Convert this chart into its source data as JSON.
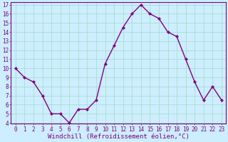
{
  "x": [
    0,
    1,
    2,
    3,
    4,
    5,
    6,
    7,
    8,
    9,
    10,
    11,
    12,
    13,
    14,
    15,
    16,
    17,
    18,
    19,
    20,
    21,
    22,
    23
  ],
  "y": [
    10,
    9,
    8.5,
    7,
    5,
    5,
    4,
    5.5,
    5.5,
    6.5,
    10.5,
    12.5,
    14.5,
    16,
    17,
    16,
    15.5,
    14,
    13.5,
    11,
    8.5,
    6.5,
    8,
    6.5
  ],
  "line_color": "#800080",
  "marker": "D",
  "marker_size": 2.0,
  "line_width": 1.0,
  "bg_color": "#cceeff",
  "grid_color": "#aaddcc",
  "xlabel": "Windchill (Refroidissement éolien,°C)",
  "xlabel_color": "#800080",
  "tick_color": "#800080",
  "spine_color": "#800080",
  "ylim": [
    4,
    17
  ],
  "xlim": [
    -0.5,
    23.5
  ],
  "yticks": [
    4,
    5,
    6,
    7,
    8,
    9,
    10,
    11,
    12,
    13,
    14,
    15,
    16,
    17
  ],
  "xticks": [
    0,
    1,
    2,
    3,
    4,
    5,
    6,
    7,
    8,
    9,
    10,
    11,
    12,
    13,
    14,
    15,
    16,
    17,
    18,
    19,
    20,
    21,
    22,
    23
  ],
  "tick_fontsize": 5.5,
  "xlabel_fontsize": 6.5
}
